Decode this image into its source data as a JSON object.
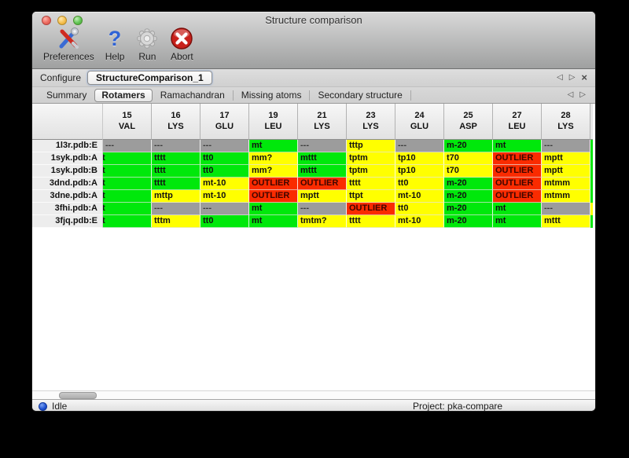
{
  "window": {
    "title": "Structure comparison"
  },
  "toolbar": {
    "items": [
      {
        "label": "Preferences",
        "icon": "tools-icon"
      },
      {
        "label": "Help",
        "icon": "question-icon"
      },
      {
        "label": "Run",
        "icon": "gear-icon"
      },
      {
        "label": "Abort",
        "icon": "abort-icon"
      }
    ]
  },
  "configure": {
    "label": "Configure",
    "value": "StructureComparison_1",
    "nav": {
      "prev": "◁",
      "next": "▷",
      "close": "×"
    }
  },
  "tabs": {
    "items": [
      "Summary",
      "Rotamers",
      "Ramachandran",
      "Missing atoms",
      "Secondary structure"
    ],
    "selected": "Rotamers",
    "nav": {
      "prev": "◁",
      "next": "▷"
    }
  },
  "help_glyph": "?",
  "colors": {
    "green": "#00e80b",
    "yellow": "#ffff00",
    "red": "#fa2b00",
    "gray": "#9c9c9c",
    "edge_header": "#e9e9e9",
    "traffic_red": "#ec6a5e",
    "traffic_yellow": "#f5bf4f",
    "traffic_green": "#61c555",
    "status_blue": "#1c4fd0"
  },
  "table": {
    "columns": [
      {
        "num": "15",
        "res": "VAL"
      },
      {
        "num": "16",
        "res": "LYS"
      },
      {
        "num": "17",
        "res": "GLU"
      },
      {
        "num": "19",
        "res": "LEU"
      },
      {
        "num": "21",
        "res": "LYS"
      },
      {
        "num": "23",
        "res": "LYS"
      },
      {
        "num": "24",
        "res": "GLU"
      },
      {
        "num": "25",
        "res": "ASP"
      },
      {
        "num": "27",
        "res": "LEU"
      },
      {
        "num": "28",
        "res": "LYS"
      }
    ],
    "rows": [
      {
        "label": "1l3r.pdb:E",
        "edge": "green",
        "cells": [
          {
            "t": "---",
            "c": "gray"
          },
          {
            "t": "---",
            "c": "gray"
          },
          {
            "t": "---",
            "c": "gray"
          },
          {
            "t": "mt",
            "c": "green"
          },
          {
            "t": "---",
            "c": "gray"
          },
          {
            "t": "tttp",
            "c": "yellow"
          },
          {
            "t": "---",
            "c": "gray"
          },
          {
            "t": "m-20",
            "c": "green"
          },
          {
            "t": "mt",
            "c": "green"
          },
          {
            "t": "---",
            "c": "gray"
          }
        ]
      },
      {
        "label": "1syk.pdb:A",
        "edge": "green",
        "cells": [
          {
            "t": "t",
            "c": "green",
            "clip": true
          },
          {
            "t": "tttt",
            "c": "green"
          },
          {
            "t": "tt0",
            "c": "green"
          },
          {
            "t": "mm?",
            "c": "yellow"
          },
          {
            "t": "mttt",
            "c": "green"
          },
          {
            "t": "tptm",
            "c": "yellow"
          },
          {
            "t": "tp10",
            "c": "yellow"
          },
          {
            "t": "t70",
            "c": "yellow"
          },
          {
            "t": "OUTLIER",
            "c": "red"
          },
          {
            "t": "mptt",
            "c": "yellow"
          }
        ]
      },
      {
        "label": "1syk.pdb:B",
        "edge": "green",
        "cells": [
          {
            "t": "t",
            "c": "green",
            "clip": true
          },
          {
            "t": "tttt",
            "c": "green"
          },
          {
            "t": "tt0",
            "c": "green"
          },
          {
            "t": "mm?",
            "c": "yellow"
          },
          {
            "t": "mttt",
            "c": "green"
          },
          {
            "t": "tptm",
            "c": "yellow"
          },
          {
            "t": "tp10",
            "c": "yellow"
          },
          {
            "t": "t70",
            "c": "yellow"
          },
          {
            "t": "OUTLIER",
            "c": "red"
          },
          {
            "t": "mptt",
            "c": "yellow"
          }
        ]
      },
      {
        "label": "3dnd.pdb:A",
        "edge": "green",
        "cells": [
          {
            "t": "t",
            "c": "green",
            "clip": true
          },
          {
            "t": "tttt",
            "c": "green"
          },
          {
            "t": "mt-10",
            "c": "yellow"
          },
          {
            "t": "OUTLIER",
            "c": "red"
          },
          {
            "t": "OUTLIER",
            "c": "red"
          },
          {
            "t": "tttt",
            "c": "yellow"
          },
          {
            "t": "tt0",
            "c": "yellow"
          },
          {
            "t": "m-20",
            "c": "green"
          },
          {
            "t": "OUTLIER",
            "c": "red"
          },
          {
            "t": "mtmm",
            "c": "yellow"
          }
        ]
      },
      {
        "label": "3dne.pdb:A",
        "edge": "green",
        "cells": [
          {
            "t": "t",
            "c": "green",
            "clip": true
          },
          {
            "t": "mttp",
            "c": "yellow"
          },
          {
            "t": "mt-10",
            "c": "yellow"
          },
          {
            "t": "OUTLIER",
            "c": "red"
          },
          {
            "t": "mptt",
            "c": "yellow"
          },
          {
            "t": "ttpt",
            "c": "yellow"
          },
          {
            "t": "mt-10",
            "c": "yellow"
          },
          {
            "t": "m-20",
            "c": "green"
          },
          {
            "t": "OUTLIER",
            "c": "red"
          },
          {
            "t": "mtmm",
            "c": "yellow"
          }
        ]
      },
      {
        "label": "3fhi.pdb:A",
        "edge": "yellow",
        "cells": [
          {
            "t": "t",
            "c": "green",
            "clip": true
          },
          {
            "t": "---",
            "c": "gray"
          },
          {
            "t": "---",
            "c": "gray"
          },
          {
            "t": "mt",
            "c": "green"
          },
          {
            "t": "---",
            "c": "gray"
          },
          {
            "t": "OUTLIER",
            "c": "red"
          },
          {
            "t": "tt0",
            "c": "yellow"
          },
          {
            "t": "m-20",
            "c": "green"
          },
          {
            "t": "mt",
            "c": "green"
          },
          {
            "t": "---",
            "c": "gray"
          }
        ]
      },
      {
        "label": "3fjq.pdb:E",
        "edge": "green",
        "cells": [
          {
            "t": "t",
            "c": "green",
            "clip": true
          },
          {
            "t": "tttm",
            "c": "yellow"
          },
          {
            "t": "tt0",
            "c": "green"
          },
          {
            "t": "mt",
            "c": "green"
          },
          {
            "t": "tmtm?",
            "c": "yellow"
          },
          {
            "t": "tttt",
            "c": "yellow"
          },
          {
            "t": "mt-10",
            "c": "yellow"
          },
          {
            "t": "m-20",
            "c": "green"
          },
          {
            "t": "mt",
            "c": "green"
          },
          {
            "t": "mttt",
            "c": "yellow"
          }
        ]
      }
    ]
  },
  "status": {
    "state": "Idle",
    "project": "Project: pka-compare"
  }
}
